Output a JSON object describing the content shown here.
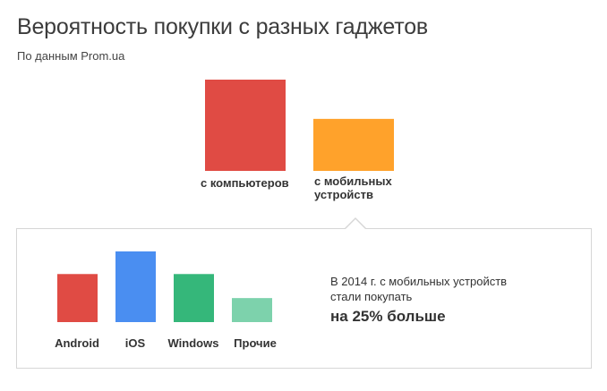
{
  "header": {
    "title": "Вероятность покупки с разных гаджетов",
    "subtitle": "По данным Prom.ua"
  },
  "chart_data": [
    {
      "type": "bar",
      "categories": [
        "с компьютеров",
        "с мобильных устройств"
      ],
      "values": [
        1.0,
        0.57
      ],
      "colors": [
        "#e04b44",
        "#ffa22b"
      ]
    },
    {
      "type": "bar",
      "categories": [
        "Android",
        "iOS",
        "Windows",
        "Прочие"
      ],
      "values": [
        0.68,
        1.0,
        0.68,
        0.34
      ],
      "colors": [
        "#e04b44",
        "#4a8ef1",
        "#35b77a",
        "#7dd2ac"
      ]
    }
  ],
  "note": {
    "line1": "В 2014 г. с мобильных устройств",
    "line2": "стали покупать",
    "highlight": "на 25% больше"
  }
}
